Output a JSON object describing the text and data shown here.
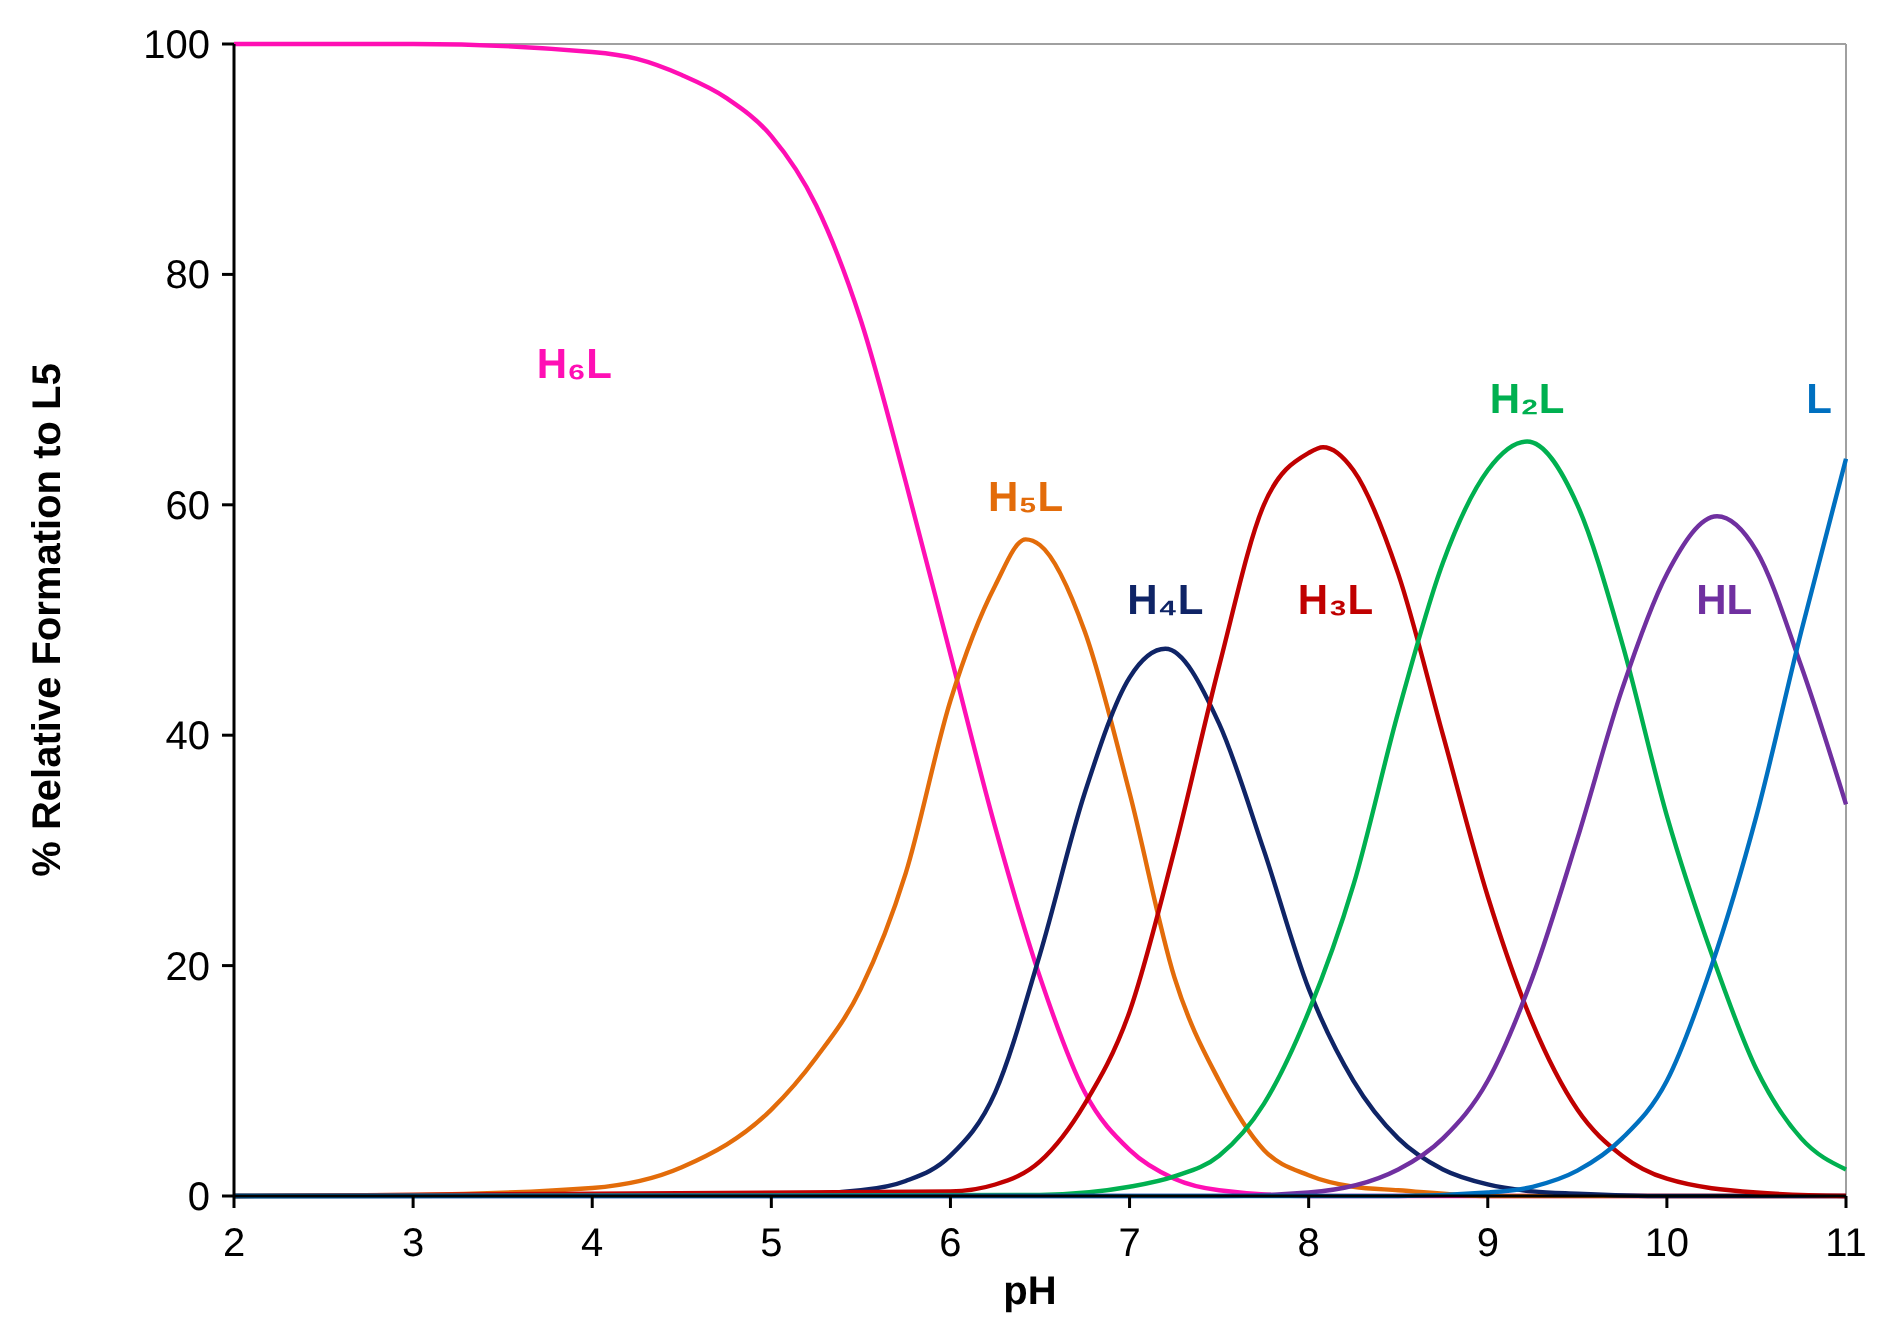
{
  "chart_data": {
    "type": "line",
    "xlabel": "pH",
    "ylabel": "% Relative Formation to L5",
    "xlim": [
      2,
      11
    ],
    "ylim": [
      0,
      100
    ],
    "xticks": [
      2,
      3,
      4,
      5,
      6,
      7,
      8,
      9,
      10,
      11
    ],
    "yticks": [
      0,
      20,
      40,
      60,
      80,
      100
    ],
    "grid": false,
    "series": [
      {
        "name": "H₆L",
        "color": "#ff0fb4",
        "x": [
          2,
          3,
          4,
          4.25,
          4.5,
          4.75,
          5,
          5.25,
          5.5,
          5.75,
          6,
          6.25,
          6.5,
          6.75,
          7,
          7.25,
          7.5,
          8,
          9,
          11
        ],
        "values": [
          100,
          100,
          99.3,
          98.7,
          97.3,
          95.3,
          92,
          86,
          76,
          62,
          47,
          32,
          19,
          9,
          4,
          1.5,
          0.5,
          0,
          0,
          0
        ]
      },
      {
        "name": "H₅L",
        "color": "#e36c0a",
        "x": [
          2,
          3,
          4,
          4.5,
          5,
          5.25,
          5.5,
          5.75,
          6,
          6.25,
          6.42,
          6.5,
          6.75,
          7,
          7.25,
          7.5,
          7.75,
          8,
          8.25,
          8.5,
          9,
          11
        ],
        "values": [
          0,
          0.1,
          0.7,
          2.5,
          7.5,
          12,
          18,
          28,
          43,
          53,
          57,
          56.5,
          49,
          35,
          19,
          10,
          4,
          1.8,
          0.8,
          0.5,
          0,
          0
        ]
      },
      {
        "name": "H₄L",
        "color": "#0f2466",
        "x": [
          2,
          5,
          5.5,
          5.75,
          6,
          6.25,
          6.5,
          6.75,
          7,
          7.2,
          7.5,
          7.75,
          8,
          8.25,
          8.5,
          8.75,
          9,
          9.25,
          9.5,
          10,
          11
        ],
        "values": [
          0,
          0.1,
          0.5,
          1.3,
          3.5,
          9,
          21,
          35,
          45,
          47.5,
          41,
          30,
          18,
          10,
          5,
          2.3,
          1,
          0.4,
          0.2,
          0,
          0
        ]
      },
      {
        "name": "H₃L",
        "color": "#c00000",
        "x": [
          2,
          6,
          6.25,
          6.5,
          6.75,
          7,
          7.25,
          7.5,
          7.75,
          8,
          8.08,
          8.25,
          8.5,
          8.75,
          9,
          9.25,
          9.5,
          9.75,
          10,
          10.5,
          11
        ],
        "values": [
          0,
          0.4,
          1,
          3,
          8,
          16,
          30,
          46,
          60,
          64.5,
          65,
          63,
          54,
          40,
          26,
          15,
          7.5,
          3.5,
          1.5,
          0.3,
          0
        ]
      },
      {
        "name": "H₂L",
        "color": "#00b050",
        "x": [
          2,
          6.5,
          7,
          7.25,
          7.5,
          7.75,
          8,
          8.25,
          8.5,
          8.75,
          9,
          9.22,
          9.5,
          9.75,
          10,
          10.25,
          10.5,
          10.75,
          11
        ],
        "values": [
          0,
          0.1,
          0.8,
          1.7,
          3.5,
          8,
          16,
          27,
          42,
          55,
          63,
          65.5,
          60,
          48,
          33,
          21,
          11,
          5,
          2.3
        ]
      },
      {
        "name": "HL",
        "color": "#7030a0",
        "x": [
          2,
          7.5,
          8,
          8.5,
          8.75,
          9,
          9.25,
          9.5,
          9.75,
          10,
          10.28,
          10.5,
          10.75,
          11
        ],
        "values": [
          0,
          0,
          0.3,
          2.3,
          5,
          10,
          19,
          31,
          44,
          54,
          59,
          56,
          46,
          34
        ]
      },
      {
        "name": "L",
        "color": "#0070c0",
        "x": [
          2,
          8.5,
          9,
          9.25,
          9.5,
          9.75,
          10,
          10.25,
          10.5,
          10.75,
          11
        ],
        "values": [
          0,
          0,
          0.3,
          0.8,
          2.2,
          5,
          10,
          20,
          33,
          49,
          64
        ]
      }
    ]
  }
}
